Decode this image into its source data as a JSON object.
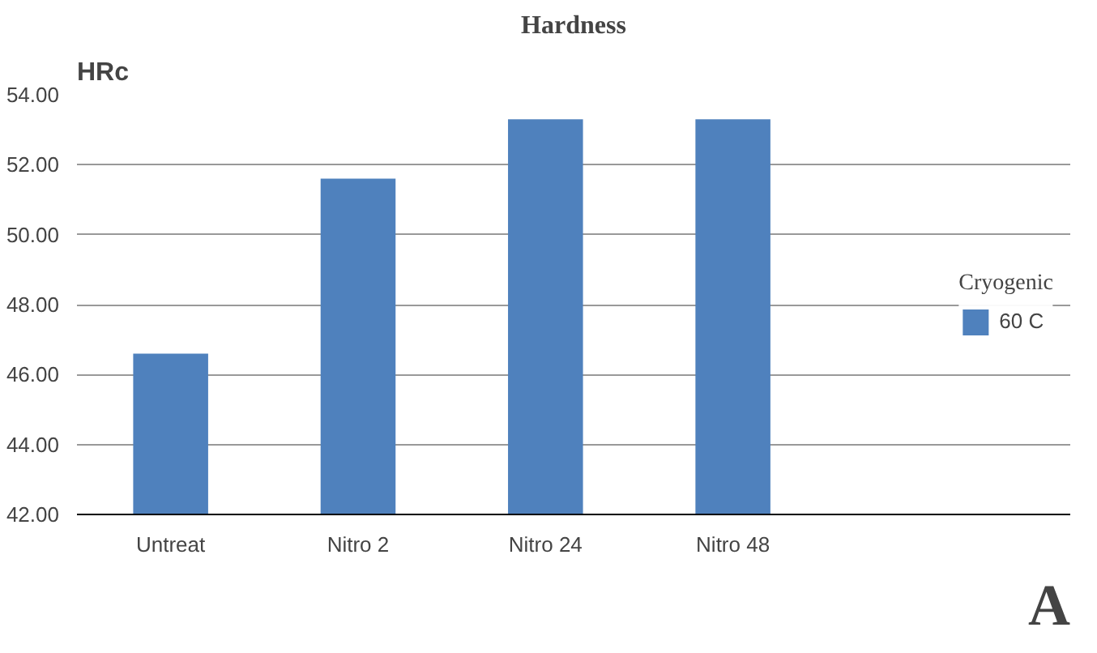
{
  "chart_data": {
    "type": "bar",
    "title": "Hardness",
    "ylabel": "HRc",
    "legend_title": "Cryogenic",
    "categories": [
      "Untreat",
      "Nitro 2",
      "Nitro 24",
      "Nitro 48"
    ],
    "series": [
      {
        "name": "60 C",
        "color": "#4f81bd",
        "values": [
          46.6,
          51.6,
          53.3,
          53.3
        ]
      }
    ],
    "ylim": [
      42,
      54
    ],
    "yticks": [
      {
        "value": 42,
        "label": "42.00"
      },
      {
        "value": 44,
        "label": "44.00"
      },
      {
        "value": 46,
        "label": "46.00"
      },
      {
        "value": 48,
        "label": "48.00"
      },
      {
        "value": 50,
        "label": "50.00"
      },
      {
        "value": 52,
        "label": "52.00"
      },
      {
        "value": 54,
        "label": "54.00"
      }
    ],
    "grid": "y",
    "legend": "right",
    "annotations": [
      "A"
    ]
  }
}
